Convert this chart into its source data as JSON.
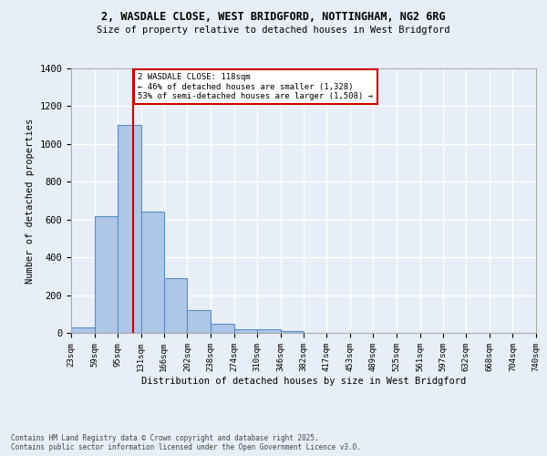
{
  "title_line1": "2, WASDALE CLOSE, WEST BRIDGFORD, NOTTINGHAM, NG2 6RG",
  "title_line2": "Size of property relative to detached houses in West Bridgford",
  "xlabel": "Distribution of detached houses by size in West Bridgford",
  "ylabel": "Number of detached properties",
  "bin_edges": [
    23,
    59,
    95,
    131,
    166,
    202,
    238,
    274,
    310,
    346,
    382,
    417,
    453,
    489,
    525,
    561,
    597,
    632,
    668,
    704,
    740
  ],
  "bin_counts": [
    30,
    620,
    1100,
    640,
    290,
    120,
    50,
    20,
    20,
    10,
    0,
    0,
    0,
    0,
    0,
    0,
    0,
    0,
    0,
    0
  ],
  "bar_color": "#aec6e8",
  "bar_edge_color": "#5a8fc2",
  "background_color": "#e8eef7",
  "grid_color": "#ffffff",
  "property_size": 118,
  "property_line_color": "#cc0000",
  "annotation_text": "2 WASDALE CLOSE: 118sqm\n← 46% of detached houses are smaller (1,328)\n53% of semi-detached houses are larger (1,508) →",
  "annotation_box_color": "#ffffff",
  "annotation_box_edge_color": "#cc0000",
  "footer_line1": "Contains HM Land Registry data © Crown copyright and database right 2025.",
  "footer_line2": "Contains public sector information licensed under the Open Government Licence v3.0.",
  "ylim": [
    0,
    1400
  ],
  "yticks": [
    0,
    200,
    400,
    600,
    800,
    1000,
    1200,
    1400
  ],
  "tick_labels": [
    "23sqm",
    "59sqm",
    "95sqm",
    "131sqm",
    "166sqm",
    "202sqm",
    "238sqm",
    "274sqm",
    "310sqm",
    "346sqm",
    "382sqm",
    "417sqm",
    "453sqm",
    "489sqm",
    "525sqm",
    "561sqm",
    "597sqm",
    "632sqm",
    "668sqm",
    "704sqm",
    "740sqm"
  ]
}
